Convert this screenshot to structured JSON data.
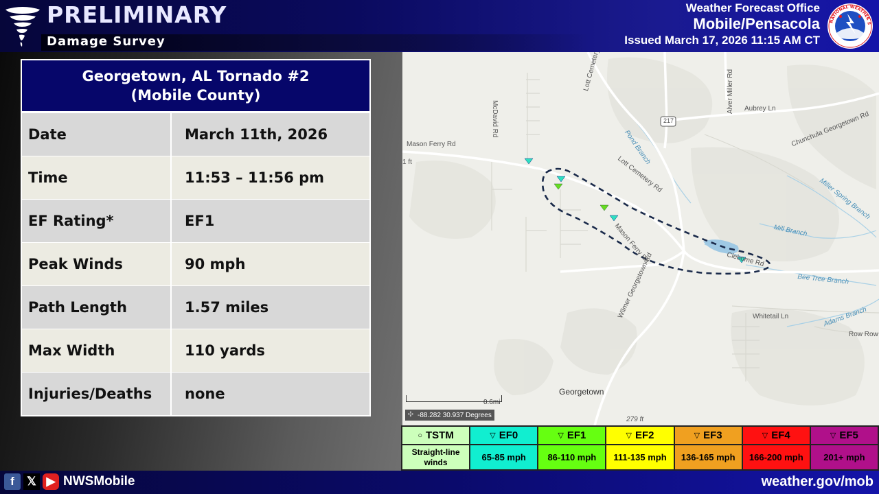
{
  "header": {
    "title": "PRELIMINARY",
    "subtitle": "Damage Survey",
    "office_line1": "Weather Forecast Office",
    "office_line2": "Mobile/Pensacola",
    "issued": "Issued March 17, 2026 11:15 AM CT",
    "logo_text": "NATIONAL WEATHER SERVICE"
  },
  "summary": {
    "title_line1": "Georgetown,  AL Tornado #2",
    "title_line2": "(Mobile County)",
    "rows": [
      {
        "label": "Date",
        "value": "March 11th, 2026"
      },
      {
        "label": "Time",
        "value": "11:53 – 11:56 pm"
      },
      {
        "label": "EF Rating*",
        "value": "EF1"
      },
      {
        "label": "Peak Winds",
        "value": "90 mph"
      },
      {
        "label": "Path Length",
        "value": "1.57 miles"
      },
      {
        "label": "Max Width",
        "value": "110 yards"
      },
      {
        "label": "Injuries/Deaths",
        "value": "none"
      }
    ]
  },
  "map": {
    "roads": [
      "Mason Ferry Rd",
      "McDavid Rd",
      "Lott Cemetery Rd",
      "Lott Cemetery Rd",
      "217",
      "Aubrey Ln",
      "Alver Miller Rd",
      "Chunchula Georgetown Rd",
      "Mason Ferry Rd",
      "Wilmer Georgetown Rd",
      "Clebome Rd",
      "Whitetail Ln",
      "Row Row"
    ],
    "water": [
      "Pond Branch",
      "Miller Spring Branch",
      "Mill Branch",
      "Bee Tree Branch",
      "Adams Branch"
    ],
    "town": "Georgetown",
    "elev_labels": [
      "1 ft",
      "279 ft"
    ],
    "scale": "0.6mi",
    "coordinates": "-88.282 30.937 Degrees",
    "markers": [
      {
        "rating": "EF0",
        "color": "#2ee0c0"
      },
      {
        "rating": "EF0",
        "color": "#2ee0c0"
      },
      {
        "rating": "EF1",
        "color": "#66dd22"
      },
      {
        "rating": "EF1",
        "color": "#66dd22"
      },
      {
        "rating": "EF0",
        "color": "#2ee0c0"
      },
      {
        "rating": "EF0",
        "color": "#2ee0c0"
      }
    ]
  },
  "legend": [
    {
      "symbol": "○",
      "label": "TSTM",
      "range": "Straight-line winds",
      "color": "#ccffbb"
    },
    {
      "symbol": "▽",
      "label": "EF0",
      "range": "65-85 mph",
      "color": "#11eed0"
    },
    {
      "symbol": "▽",
      "label": "EF1",
      "range": "86-110 mph",
      "color": "#66ff11"
    },
    {
      "symbol": "▽",
      "label": "EF2",
      "range": "111-135 mph",
      "color": "#ffff00"
    },
    {
      "symbol": "▽",
      "label": "EF3",
      "range": "136-165 mph",
      "color": "#f0a020"
    },
    {
      "symbol": "▽",
      "label": "EF4",
      "range": "166-200 mph",
      "color": "#ff1111"
    },
    {
      "symbol": "▽",
      "label": "EF5",
      "range": "201+ mph",
      "color": "#b0108a"
    }
  ],
  "footer": {
    "handle": "NWSMobile",
    "url": "weather.gov/mob"
  }
}
